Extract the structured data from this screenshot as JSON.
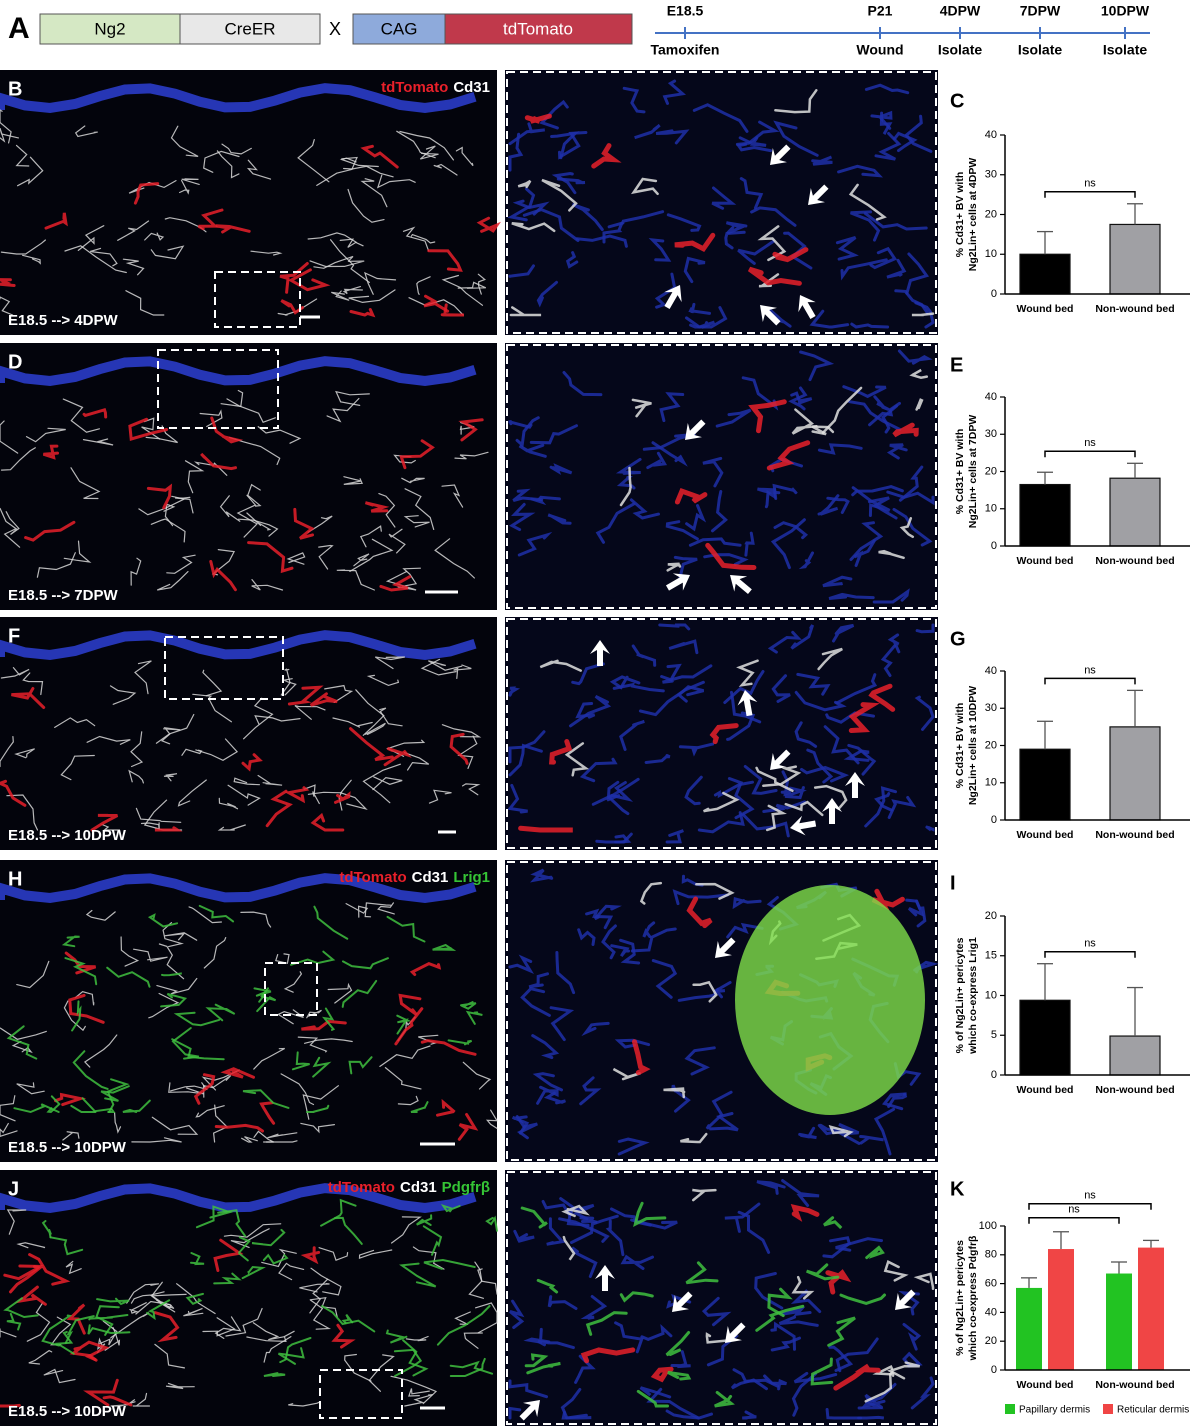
{
  "figure_a": {
    "label": "A",
    "construct1": [
      "Ng2",
      "CreER"
    ],
    "cross": "X",
    "construct2": [
      "CAG",
      "tdTomato"
    ],
    "timeline": {
      "top": [
        "E18.5",
        "P21",
        "4DPW",
        "7DPW",
        "10DPW"
      ],
      "bottom": [
        "Tamoxifen",
        "Wound",
        "Isolate",
        "Isolate",
        "Isolate"
      ]
    }
  },
  "images": [
    {
      "label": "B",
      "caption": "E18.5 --> 4DPW",
      "stain": [
        {
          "text": "tdTomato",
          "color": "#e8202a"
        },
        {
          "text": "Cd31",
          "color": "#ffffff"
        }
      ]
    },
    {
      "label": "D",
      "caption": "E18.5 --> 7DPW"
    },
    {
      "label": "F",
      "caption": "E18.5 --> 10DPW"
    },
    {
      "label": "H",
      "caption": "E18.5 --> 10DPW",
      "stain": [
        {
          "text": "tdTomato",
          "color": "#e8202a"
        },
        {
          "text": "Cd31",
          "color": "#ffffff"
        },
        {
          "text": "Lrig1",
          "color": "#35c435"
        }
      ]
    },
    {
      "label": "J",
      "caption": "E18.5 --> 10DPW",
      "stain": [
        {
          "text": "tdTomato",
          "color": "#e8202a"
        },
        {
          "text": "Cd31",
          "color": "#ffffff"
        },
        {
          "text": "Pdgfrβ",
          "color": "#35c435"
        }
      ]
    }
  ],
  "chart_data": [
    {
      "type": "bar",
      "label": "C",
      "ylabel": [
        "% Cd31+ BV with",
        "Ng2Lin+ cells at 4DPW"
      ],
      "categories": [
        "Wound bed",
        "Non-wound bed"
      ],
      "values": [
        10,
        17.5
      ],
      "errors": [
        5.7,
        5.2
      ],
      "colors": [
        "#000000",
        "#a0a0a4"
      ],
      "ylim": [
        0,
        40
      ],
      "yticks": [
        0,
        10,
        20,
        30,
        40
      ],
      "annotations": [
        "ns"
      ]
    },
    {
      "type": "bar",
      "label": "E",
      "ylabel": [
        "% Cd31+ BV with",
        "Ng2Lin+ cells at 7DPW"
      ],
      "categories": [
        "Wound bed",
        "Non-wound bed"
      ],
      "values": [
        16.5,
        18.2
      ],
      "errors": [
        3.3,
        4
      ],
      "colors": [
        "#000000",
        "#a0a0a4"
      ],
      "ylim": [
        0,
        40
      ],
      "yticks": [
        0,
        10,
        20,
        30,
        40
      ],
      "annotations": [
        "ns"
      ]
    },
    {
      "type": "bar",
      "label": "G",
      "ylabel": [
        "% Cd31+ BV with",
        "Ng2Lin+ cells at 10DPW"
      ],
      "categories": [
        "Wound bed",
        "Non-wound bed"
      ],
      "values": [
        19,
        25
      ],
      "errors": [
        7.5,
        9.8
      ],
      "colors": [
        "#000000",
        "#a0a0a4"
      ],
      "ylim": [
        0,
        40
      ],
      "yticks": [
        0,
        10,
        20,
        30,
        40
      ],
      "annotations": [
        "ns"
      ]
    },
    {
      "type": "bar",
      "label": "I",
      "ylabel": [
        "% of Ng2Lin+ pericytes",
        "which co-express Lrig1"
      ],
      "categories": [
        "Wound bed",
        "Non-wound bed"
      ],
      "values": [
        9.4,
        4.9
      ],
      "errors": [
        4.6,
        6.1
      ],
      "colors": [
        "#000000",
        "#a0a0a4"
      ],
      "ylim": [
        0,
        20
      ],
      "yticks": [
        0,
        5,
        10,
        15,
        20
      ],
      "annotations": [
        "ns"
      ]
    },
    {
      "type": "grouped_bar",
      "label": "K",
      "ylabel": [
        "% of Ng2Lin+ pericytes",
        "which co-express Pdgfrβ"
      ],
      "categories": [
        "Wound bed",
        "Non-wound bed"
      ],
      "series": [
        {
          "name": "Papillary dermis",
          "color": "#22c322",
          "values": [
            57,
            67
          ],
          "errors": [
            7,
            8
          ]
        },
        {
          "name": "Reticular dermis",
          "color": "#f04545",
          "values": [
            84,
            85
          ],
          "errors": [
            12,
            5
          ]
        }
      ],
      "ylim": [
        0,
        100
      ],
      "yticks": [
        0,
        20,
        40,
        60,
        80,
        100
      ],
      "annotations": [
        "ns",
        "ns"
      ]
    }
  ]
}
